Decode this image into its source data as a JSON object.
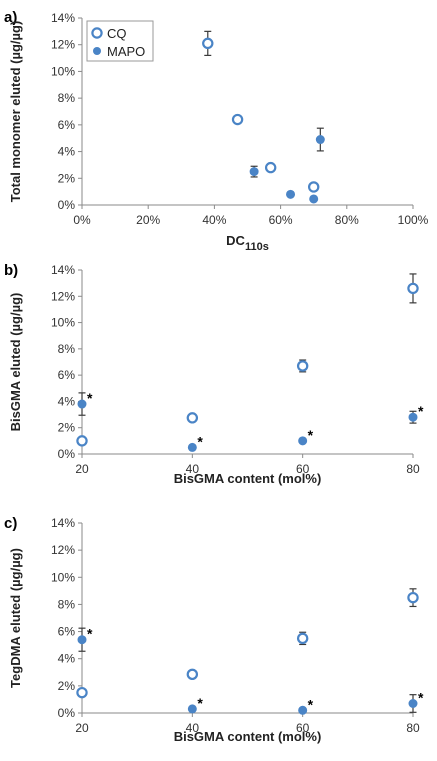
{
  "colors": {
    "series": "#4a84c6",
    "axis": "#8a8a8a",
    "error": "#3a3a3a"
  },
  "chart_data": [
    {
      "panel_label": "a)",
      "type": "scatter",
      "xlabel": "DC",
      "xlabel_sub": "110s",
      "ylabel": "Total monomer eluted (µg/µg)",
      "x_unit": "%",
      "y_unit": "%",
      "xlim": [
        0,
        100
      ],
      "ylim": [
        0,
        14
      ],
      "x_ticks": [
        0,
        20,
        40,
        60,
        80,
        100
      ],
      "x_tick_labels": [
        "0%",
        "20%",
        "40%",
        "60%",
        "80%",
        "100%"
      ],
      "y_ticks": [
        0,
        2,
        4,
        6,
        8,
        10,
        12,
        14
      ],
      "y_tick_labels": [
        "0%",
        "2%",
        "4%",
        "6%",
        "8%",
        "10%",
        "12%",
        "14%"
      ],
      "grid": false,
      "legend": {
        "placement": "top-left",
        "entries": [
          "CQ",
          "MAPO"
        ]
      },
      "series": [
        {
          "name": "CQ",
          "marker": "open-circle",
          "points": [
            {
              "x": 38,
              "y": 12.1,
              "err": 0.9
            },
            {
              "x": 47,
              "y": 6.4,
              "err": 0
            },
            {
              "x": 57,
              "y": 2.8,
              "err": 0
            },
            {
              "x": 70,
              "y": 1.35,
              "err": 0
            }
          ]
        },
        {
          "name": "MAPO",
          "marker": "filled-circle",
          "points": [
            {
              "x": 52,
              "y": 2.5,
              "err": 0.4
            },
            {
              "x": 63,
              "y": 0.8,
              "err": 0
            },
            {
              "x": 70,
              "y": 0.45,
              "err": 0
            },
            {
              "x": 72,
              "y": 4.9,
              "err": 0.85
            }
          ]
        }
      ]
    },
    {
      "panel_label": "b)",
      "type": "scatter",
      "xlabel": "BisGMA content (mol%)",
      "ylabel": "BisGMA eluted (µg/µg)",
      "x_unit": "",
      "y_unit": "%",
      "xlim": [
        20,
        80
      ],
      "ylim": [
        0,
        14
      ],
      "x_ticks": [
        20,
        40,
        60,
        80
      ],
      "x_tick_labels": [
        "20",
        "40",
        "60",
        "80"
      ],
      "y_ticks": [
        0,
        2,
        4,
        6,
        8,
        10,
        12,
        14
      ],
      "y_tick_labels": [
        "0%",
        "2%",
        "4%",
        "6%",
        "8%",
        "10%",
        "12%",
        "14%"
      ],
      "grid": false,
      "series": [
        {
          "marker": "open-circle",
          "points": [
            {
              "x": 20,
              "y": 1.0,
              "err": 0
            },
            {
              "x": 40,
              "y": 2.75,
              "err": 0
            },
            {
              "x": 60,
              "y": 6.7,
              "err": 0.45
            },
            {
              "x": 80,
              "y": 12.6,
              "err": 1.1
            }
          ]
        },
        {
          "marker": "filled-circle",
          "points": [
            {
              "x": 20,
              "y": 3.8,
              "err": 0.85,
              "star": "*"
            },
            {
              "x": 40,
              "y": 0.5,
              "err": 0,
              "star": "*"
            },
            {
              "x": 60,
              "y": 1.0,
              "err": 0,
              "star": "*"
            },
            {
              "x": 80,
              "y": 2.8,
              "err": 0.45,
              "star": "*"
            }
          ]
        }
      ]
    },
    {
      "panel_label": "c)",
      "type": "scatter",
      "xlabel": "BisGMA content (mol%)",
      "ylabel": "TegDMA eluted (µg/µg)",
      "x_unit": "",
      "y_unit": "%",
      "xlim": [
        20,
        80
      ],
      "ylim": [
        0,
        14
      ],
      "x_ticks": [
        20,
        40,
        60,
        80
      ],
      "x_tick_labels": [
        "20",
        "40",
        "60",
        "80"
      ],
      "y_ticks": [
        0,
        2,
        4,
        6,
        8,
        10,
        12,
        14
      ],
      "y_tick_labels": [
        "0%",
        "2%",
        "4%",
        "6%",
        "8%",
        "10%",
        "12%",
        "14%"
      ],
      "grid": false,
      "series": [
        {
          "marker": "open-circle",
          "points": [
            {
              "x": 20,
              "y": 1.5,
              "err": 0
            },
            {
              "x": 40,
              "y": 2.85,
              "err": 0
            },
            {
              "x": 60,
              "y": 5.5,
              "err": 0.45
            },
            {
              "x": 80,
              "y": 8.5,
              "err": 0.65
            }
          ]
        },
        {
          "marker": "filled-circle",
          "points": [
            {
              "x": 20,
              "y": 5.4,
              "err": 0.85,
              "star": "*"
            },
            {
              "x": 40,
              "y": 0.3,
              "err": 0,
              "star": "*"
            },
            {
              "x": 60,
              "y": 0.2,
              "err": 0,
              "star": "*"
            },
            {
              "x": 80,
              "y": 0.7,
              "err": 0.65,
              "star": "*"
            }
          ]
        }
      ]
    }
  ]
}
